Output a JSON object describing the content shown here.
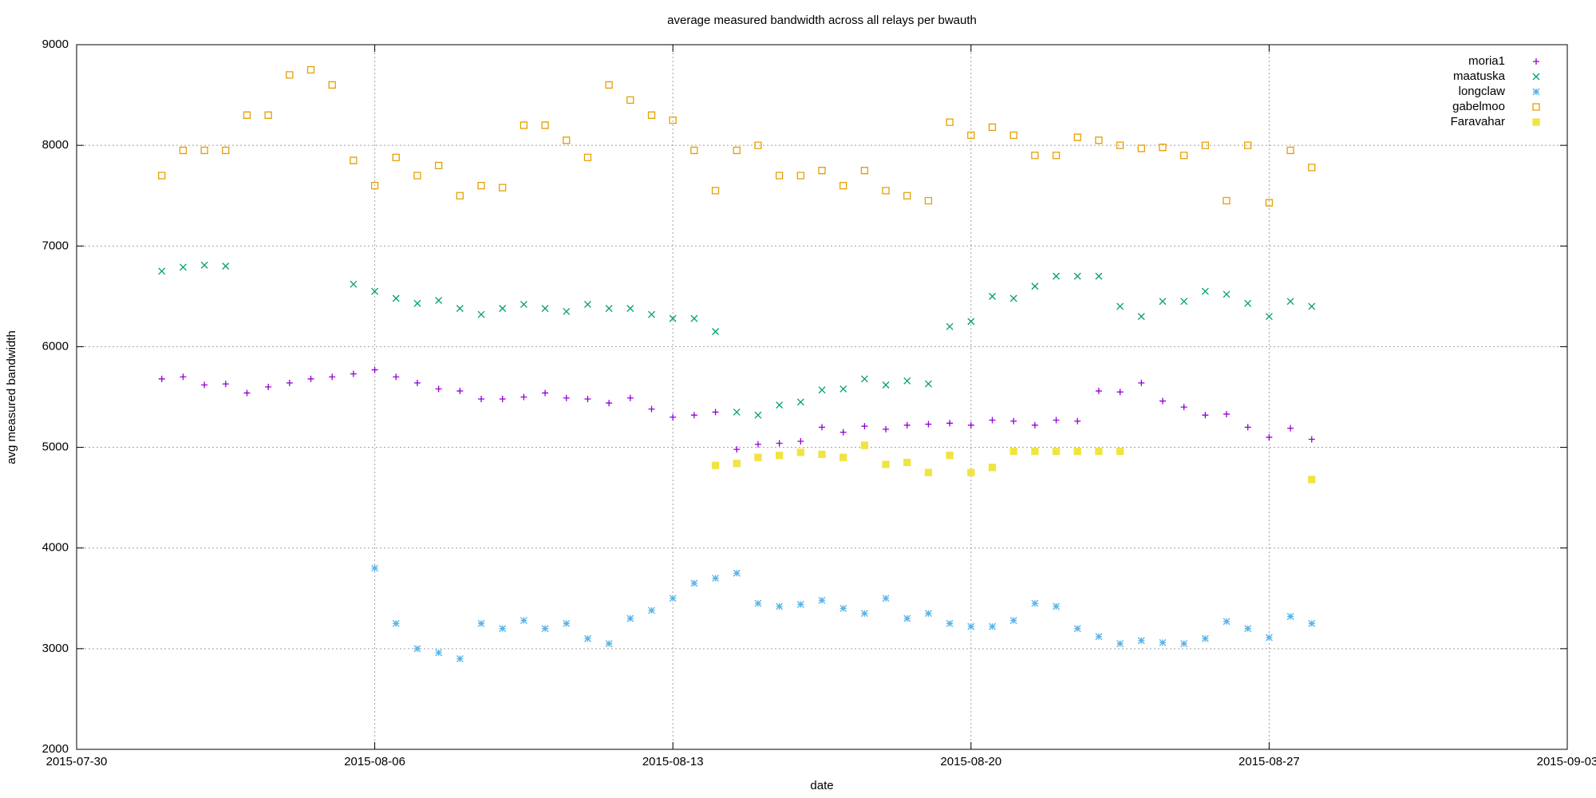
{
  "chart_data": {
    "type": "scatter",
    "title": "average measured bandwidth across all relays per bwauth",
    "x_label": "date",
    "y_label": "avg measured bandwidth",
    "xlim": [
      "2015-07-30 00:00",
      "2015-09-03 00:00"
    ],
    "xticks": [
      {
        "value": "2015-07-30 00:00",
        "label": "2015-07-30"
      },
      {
        "value": "2015-08-06 00:00",
        "label": "2015-08-06"
      },
      {
        "value": "2015-08-13 00:00",
        "label": "2015-08-13"
      },
      {
        "value": "2015-08-20 00:00",
        "label": "2015-08-20"
      },
      {
        "value": "2015-08-27 00:00",
        "label": "2015-08-27"
      },
      {
        "value": "2015-09-03 00:00",
        "label": "2015-09-03"
      }
    ],
    "ylim": [
      2000,
      9000
    ],
    "yticks": [
      2000,
      3000,
      4000,
      5000,
      6000,
      7000,
      8000,
      9000
    ],
    "grid": true,
    "legend": "top-right",
    "x": [
      "2015-08-01 00:00",
      "2015-08-01 12:00",
      "2015-08-02 00:00",
      "2015-08-02 12:00",
      "2015-08-03 00:00",
      "2015-08-03 12:00",
      "2015-08-04 00:00",
      "2015-08-04 12:00",
      "2015-08-05 00:00",
      "2015-08-05 12:00",
      "2015-08-06 00:00",
      "2015-08-06 12:00",
      "2015-08-07 00:00",
      "2015-08-07 12:00",
      "2015-08-08 00:00",
      "2015-08-08 12:00",
      "2015-08-09 00:00",
      "2015-08-09 12:00",
      "2015-08-10 00:00",
      "2015-08-10 12:00",
      "2015-08-11 00:00",
      "2015-08-11 12:00",
      "2015-08-12 00:00",
      "2015-08-12 12:00",
      "2015-08-13 00:00",
      "2015-08-13 12:00",
      "2015-08-14 00:00",
      "2015-08-14 12:00",
      "2015-08-15 00:00",
      "2015-08-15 12:00",
      "2015-08-16 00:00",
      "2015-08-16 12:00",
      "2015-08-17 00:00",
      "2015-08-17 12:00",
      "2015-08-18 00:00",
      "2015-08-18 12:00",
      "2015-08-19 00:00",
      "2015-08-19 12:00",
      "2015-08-20 00:00",
      "2015-08-20 12:00",
      "2015-08-21 00:00",
      "2015-08-21 12:00",
      "2015-08-22 00:00",
      "2015-08-22 12:00",
      "2015-08-23 00:00",
      "2015-08-23 12:00",
      "2015-08-24 00:00",
      "2015-08-24 12:00",
      "2015-08-25 00:00",
      "2015-08-25 12:00",
      "2015-08-26 00:00",
      "2015-08-26 12:00",
      "2015-08-27 00:00",
      "2015-08-27 12:00",
      "2015-08-28 00:00"
    ],
    "series": [
      {
        "name": "moria1",
        "color": "#9400d3",
        "marker": "plus",
        "values": [
          5680,
          5700,
          5620,
          5630,
          5540,
          5600,
          5640,
          5680,
          5700,
          5730,
          5770,
          5700,
          5640,
          5580,
          5560,
          5480,
          5480,
          5500,
          5540,
          5490,
          5480,
          5440,
          5490,
          5380,
          5300,
          5320,
          5350,
          4980,
          5030,
          5040,
          5060,
          5200,
          5150,
          5210,
          5180,
          5220,
          5230,
          5240,
          5220,
          5270,
          5260,
          5220,
          5270,
          5260,
          5560,
          5550,
          5640,
          5460,
          5400,
          5320,
          5330,
          5200,
          5100,
          5190,
          5080
        ]
      },
      {
        "name": "maatuska",
        "color": "#009e73",
        "marker": "cross",
        "values": [
          6750,
          6790,
          6810,
          6800,
          null,
          null,
          null,
          null,
          null,
          6620,
          6550,
          6480,
          6430,
          6460,
          6380,
          6320,
          6380,
          6420,
          6380,
          6350,
          6420,
          6380,
          6380,
          6320,
          6280,
          6280,
          6150,
          5350,
          5320,
          5420,
          5450,
          5570,
          5580,
          5680,
          5620,
          5660,
          5630,
          6200,
          6250,
          6500,
          6480,
          6600,
          6700,
          6700,
          6700,
          6400,
          6300,
          6450,
          6450,
          6550,
          6520,
          6430,
          6300,
          6450,
          6400
        ]
      },
      {
        "name": "longclaw",
        "color": "#56b4e9",
        "marker": "star",
        "values": [
          null,
          null,
          null,
          null,
          null,
          null,
          null,
          null,
          null,
          null,
          3800,
          3250,
          3000,
          2960,
          2900,
          3250,
          3200,
          3280,
          3200,
          3250,
          3100,
          3050,
          3300,
          3380,
          3500,
          3650,
          3700,
          3750,
          3450,
          3420,
          3440,
          3480,
          3400,
          3350,
          3500,
          3300,
          3350,
          3250,
          3220,
          3220,
          3280,
          3450,
          3420,
          3200,
          3120,
          3050,
          3080,
          3060,
          3050,
          3100,
          3270,
          3200,
          3110,
          3320,
          3250
        ]
      },
      {
        "name": "gabelmoo",
        "color": "#e69f00",
        "marker": "square",
        "values": [
          7700,
          7950,
          7950,
          7950,
          8300,
          8300,
          8700,
          8750,
          8600,
          7850,
          7600,
          7880,
          7700,
          7800,
          7500,
          7600,
          7580,
          8200,
          8200,
          8050,
          7880,
          8600,
          8450,
          8300,
          8250,
          7950,
          7550,
          7950,
          8000,
          7700,
          7700,
          7750,
          7600,
          7750,
          7550,
          7500,
          7450,
          8230,
          8100,
          8180,
          8100,
          7900,
          7900,
          8080,
          8050,
          8000,
          7970,
          7980,
          7900,
          8000,
          7450,
          8000,
          7430,
          7950,
          7780
        ]
      },
      {
        "name": "Faravahar",
        "color": "#f0e442",
        "marker": "filled-square",
        "values": [
          null,
          null,
          null,
          null,
          null,
          null,
          null,
          null,
          null,
          null,
          null,
          null,
          null,
          null,
          null,
          null,
          null,
          null,
          null,
          null,
          null,
          null,
          null,
          null,
          null,
          null,
          4820,
          4840,
          4900,
          4920,
          4950,
          4930,
          4900,
          5020,
          4830,
          4850,
          4750,
          4920,
          4750,
          4800,
          4960,
          4960,
          4960,
          4960,
          4960,
          4960,
          null,
          null,
          null,
          null,
          null,
          null,
          null,
          null,
          4680
        ]
      }
    ]
  }
}
